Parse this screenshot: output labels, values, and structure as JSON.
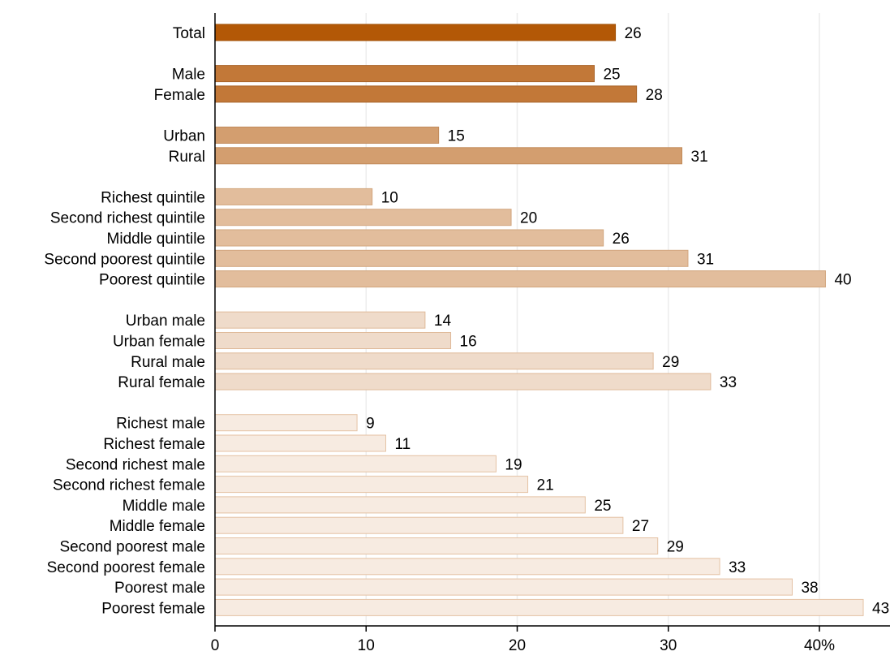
{
  "chart_data": {
    "type": "bar",
    "orientation": "horizontal",
    "xlim": [
      0,
      45
    ],
    "x_ticks": [
      0,
      10,
      20,
      30,
      40
    ],
    "x_tick_labels": [
      "0",
      "10",
      "20",
      "30",
      "40%"
    ],
    "grid": true,
    "groups": [
      {
        "categories": [
          "Total"
        ],
        "values": [
          26.5
        ],
        "labels": [
          "26"
        ],
        "color": "#b35806",
        "stroke": "#a04f05"
      },
      {
        "categories": [
          "Male",
          "Female"
        ],
        "values": [
          25.1,
          27.9
        ],
        "labels": [
          "25",
          "28"
        ],
        "color": "#c27838",
        "stroke": "#a9652b"
      },
      {
        "categories": [
          "Urban",
          "Rural"
        ],
        "values": [
          14.8,
          30.9
        ],
        "labels": [
          "15",
          "31"
        ],
        "color": "#d39e6f",
        "stroke": "#c28a5a"
      },
      {
        "categories": [
          "Richest quintile",
          "Second richest quintile",
          "Middle quintile",
          "Second poorest quintile",
          "Poorest quintile"
        ],
        "values": [
          10.4,
          19.6,
          25.7,
          31.3,
          40.4
        ],
        "labels": [
          "10",
          "20",
          "26",
          "31",
          "40"
        ],
        "color": "#e2bd9c",
        "stroke": "#d2a67e"
      },
      {
        "categories": [
          "Urban male",
          "Urban female",
          "Rural male",
          "Rural female"
        ],
        "values": [
          13.9,
          15.6,
          29.0,
          32.8
        ],
        "labels": [
          "14",
          "16",
          "29",
          "33"
        ],
        "color": "#efdbca",
        "stroke": "#dfb998"
      },
      {
        "categories": [
          "Richest male",
          "Richest female",
          "Second richest male",
          "Second richest female",
          "Middle male",
          "Middle female",
          "Second poorest male",
          "Second poorest female",
          "Poorest male",
          "Poorest female"
        ],
        "values": [
          9.4,
          11.3,
          18.6,
          20.7,
          24.5,
          27.0,
          29.3,
          33.4,
          38.2,
          42.9
        ],
        "labels": [
          "9",
          "11",
          "19",
          "21",
          "25",
          "27",
          "29",
          "33",
          "38",
          "43"
        ],
        "color": "#f7ebe1",
        "stroke": "#e4c2a4"
      }
    ]
  }
}
